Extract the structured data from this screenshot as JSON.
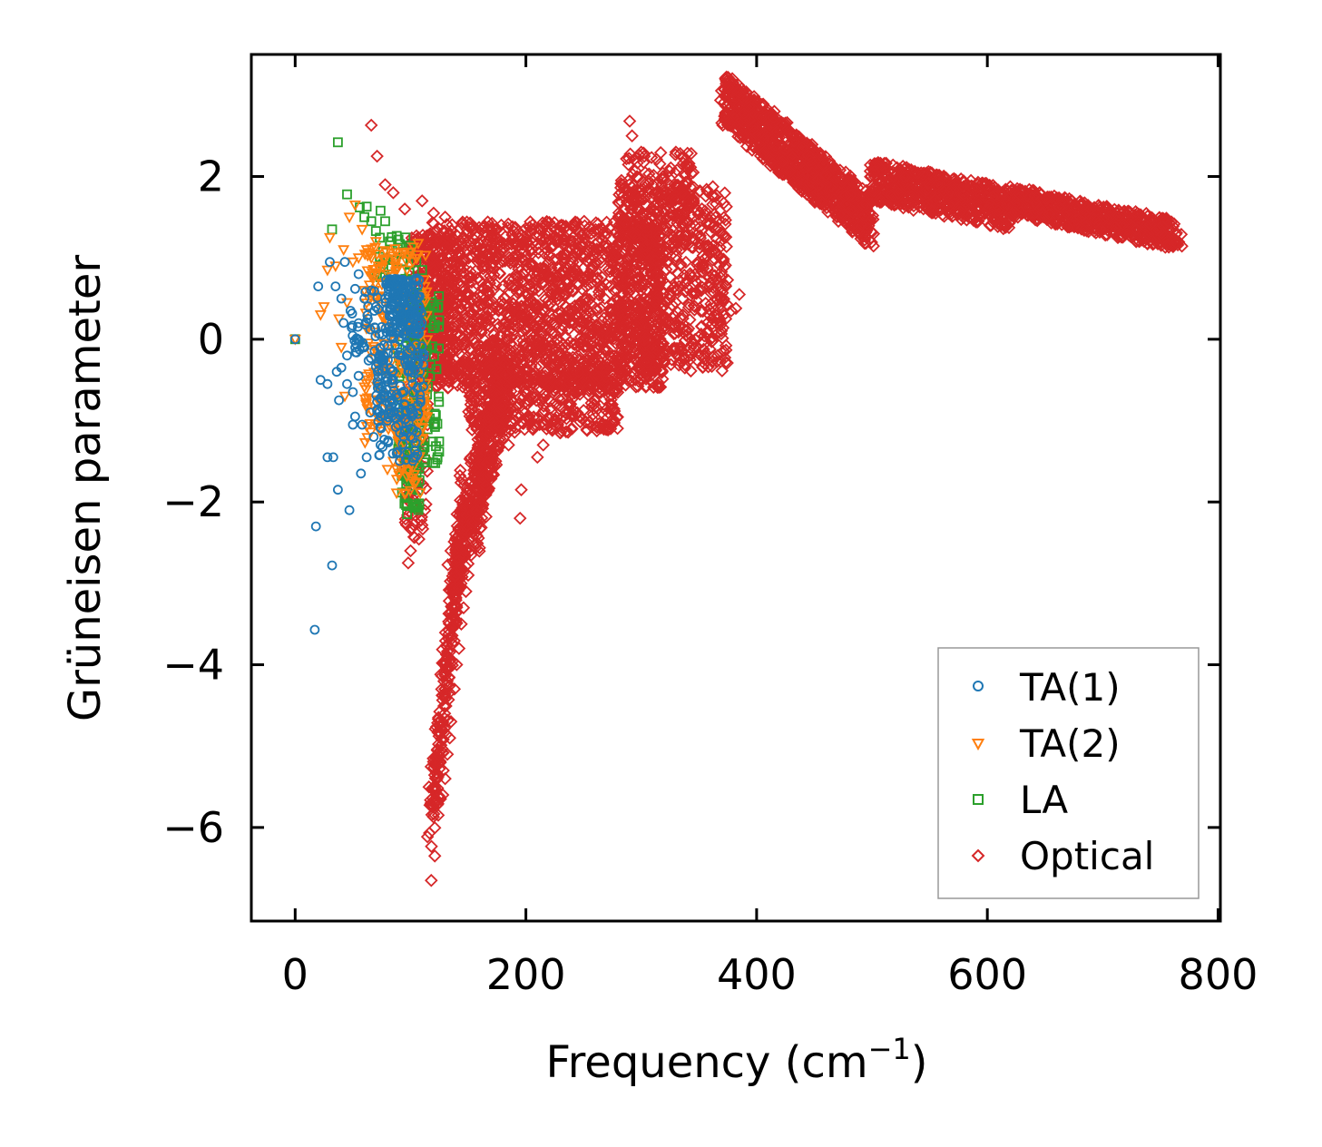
{
  "chart_data": {
    "type": "scatter",
    "xlabel": "Frequency (cm",
    "xlabel_sup": "−1",
    "xlabel_close": ")",
    "ylabel": "Grüneisen parameter",
    "xlim": [
      -38,
      802
    ],
    "ylim": [
      -7.15,
      3.5
    ],
    "xticks": [
      {
        "value": 0,
        "label": "0"
      },
      {
        "value": 200,
        "label": "200"
      },
      {
        "value": 400,
        "label": "400"
      },
      {
        "value": 600,
        "label": "600"
      },
      {
        "value": 800,
        "label": "800"
      }
    ],
    "yticks": [
      {
        "value": 2,
        "label": "2"
      },
      {
        "value": 0,
        "label": "0"
      },
      {
        "value": -2,
        "label": "−2"
      },
      {
        "value": -4,
        "label": "−4"
      },
      {
        "value": -6,
        "label": "−6"
      }
    ],
    "legend_position": "lower-right",
    "series": [
      {
        "name": "TA(1)",
        "marker": "circle",
        "color": "#1f77b4",
        "points": [
          [
            0,
            0
          ],
          [
            17,
            -3.57
          ],
          [
            18,
            -2.3
          ],
          [
            20,
            0.65
          ],
          [
            22,
            -0.5
          ],
          [
            28,
            -0.55
          ],
          [
            28,
            -1.45
          ],
          [
            30,
            0.95
          ],
          [
            32,
            -2.78
          ],
          [
            33,
            -1.45
          ],
          [
            35,
            0.65
          ],
          [
            36,
            -0.4
          ],
          [
            37,
            -1.85
          ],
          [
            38,
            -0.75
          ],
          [
            40,
            0.5
          ],
          [
            40,
            -0.35
          ],
          [
            42,
            0.2
          ],
          [
            43,
            0.95
          ],
          [
            45,
            -0.2
          ],
          [
            45,
            -0.55
          ],
          [
            47,
            -2.1
          ],
          [
            48,
            0.35
          ],
          [
            50,
            -1.05
          ],
          [
            50,
            -0.65
          ],
          [
            52,
            0.62
          ],
          [
            52,
            -0.95
          ],
          [
            55,
            0.8
          ],
          [
            55,
            -0.45
          ],
          [
            57,
            -1.65
          ],
          [
            58,
            -1.05
          ],
          [
            60,
            0.5
          ],
          [
            60,
            -0.1
          ],
          [
            62,
            -1.45
          ],
          [
            63,
            0.25
          ],
          [
            65,
            -0.9
          ],
          [
            66,
            0.6
          ],
          [
            68,
            -1.2
          ],
          [
            70,
            0.4
          ],
          [
            72,
            -0.3
          ],
          [
            74,
            -1.3
          ],
          [
            75,
            0.15
          ],
          [
            77,
            -0.7
          ],
          [
            78,
            0.5
          ],
          [
            80,
            -1.0
          ],
          [
            82,
            0.3
          ],
          [
            84,
            -0.4
          ],
          [
            86,
            0.55
          ],
          [
            88,
            -1.4
          ],
          [
            90,
            0.35
          ],
          [
            92,
            -0.2
          ],
          [
            94,
            0.6
          ],
          [
            95,
            -0.8
          ],
          [
            97,
            0.1
          ],
          [
            99,
            0.45
          ],
          [
            100,
            -1.2
          ],
          [
            102,
            -0.55
          ],
          [
            104,
            0.3
          ],
          [
            106,
            -0.6
          ]
        ],
        "clusters": [
          {
            "fx": [
              78,
              110
            ],
            "g": [
              0.05,
              0.75
            ],
            "n": 160
          },
          {
            "fx": [
              70,
              112
            ],
            "g": [
              -1.0,
              0.1
            ],
            "n": 120
          },
          {
            "fx": [
              72,
              108
            ],
            "g": [
              -1.5,
              -0.9
            ],
            "n": 40
          },
          {
            "fx": [
              48,
              78
            ],
            "g": [
              -0.3,
              0.6
            ],
            "n": 40
          }
        ]
      },
      {
        "name": "TA(2)",
        "marker": "triangle-down",
        "color": "#ff7f0e",
        "points": [
          [
            0,
            0
          ],
          [
            22,
            0.3
          ],
          [
            25,
            0.4
          ],
          [
            28,
            0.85
          ],
          [
            30,
            1.25
          ],
          [
            35,
            0.9
          ],
          [
            38,
            0.25
          ],
          [
            40,
            -0.1
          ],
          [
            42,
            1.1
          ],
          [
            43,
            -0.7
          ],
          [
            45,
            0.45
          ],
          [
            47,
            1.5
          ],
          [
            50,
            0.95
          ],
          [
            52,
            1.65
          ],
          [
            55,
            1.0
          ],
          [
            58,
            1.35
          ],
          [
            60,
            0.6
          ],
          [
            62,
            1.1
          ],
          [
            63,
            -0.5
          ],
          [
            66,
            1.0
          ],
          [
            70,
            1.2
          ],
          [
            72,
            0.9
          ],
          [
            75,
            -1.0
          ],
          [
            78,
            -0.4
          ],
          [
            80,
            -1.6
          ],
          [
            85,
            -1.5
          ],
          [
            88,
            -1.6
          ],
          [
            90,
            -1.25
          ],
          [
            95,
            -1.9
          ],
          [
            100,
            -1.55
          ],
          [
            105,
            -1.45
          ],
          [
            108,
            -0.8
          ],
          [
            110,
            -0.3
          ],
          [
            112,
            0.5
          ]
        ],
        "clusters": [
          {
            "fx": [
              60,
              115
            ],
            "g": [
              -1.3,
              1.2
            ],
            "n": 220
          },
          {
            "fx": [
              85,
              110
            ],
            "g": [
              -1.9,
              -1.0
            ],
            "n": 30
          }
        ]
      },
      {
        "name": "LA",
        "marker": "square",
        "color": "#2ca02c",
        "points": [
          [
            0,
            0
          ],
          [
            37,
            2.42
          ],
          [
            32,
            1.35
          ],
          [
            45,
            1.78
          ],
          [
            56,
            1.62
          ],
          [
            60,
            1.5
          ],
          [
            62,
            1.63
          ],
          [
            66,
            1.45
          ],
          [
            70,
            1.33
          ],
          [
            74,
            1.58
          ],
          [
            78,
            1.45
          ],
          [
            82,
            1.2
          ],
          [
            85,
            0.98
          ],
          [
            90,
            0.55
          ],
          [
            95,
            -1.95
          ],
          [
            97,
            -2.15
          ],
          [
            100,
            -1.8
          ],
          [
            103,
            -1.55
          ],
          [
            105,
            -1.75
          ],
          [
            108,
            -1.2
          ],
          [
            112,
            -0.6
          ],
          [
            116,
            0.3
          ],
          [
            120,
            0.42
          ],
          [
            124,
            0.4
          ],
          [
            110,
            0.85
          ],
          [
            105,
            0.95
          ]
        ],
        "clusters": [
          {
            "fx": [
              88,
              125
            ],
            "g": [
              -1.6,
              0.6
            ],
            "n": 140
          },
          {
            "fx": [
              92,
              108
            ],
            "g": [
              -2.1,
              -1.4
            ],
            "n": 40
          },
          {
            "fx": [
              70,
              100
            ],
            "g": [
              0.7,
              1.3
            ],
            "n": 30
          }
        ]
      },
      {
        "name": "Optical",
        "marker": "diamond",
        "color": "#d62728",
        "points": [
          [
            66,
            2.63
          ],
          [
            71,
            2.25
          ],
          [
            78,
            1.9
          ],
          [
            85,
            1.8
          ],
          [
            95,
            1.6
          ],
          [
            110,
            1.7
          ],
          [
            120,
            1.55
          ],
          [
            130,
            1.5
          ],
          [
            98,
            -2.75
          ],
          [
            100,
            -2.6
          ],
          [
            118,
            -6.65
          ],
          [
            121,
            -6.35
          ],
          [
            124,
            -5.85
          ],
          [
            126,
            -5.65
          ],
          [
            128,
            -5.6
          ],
          [
            130,
            -5.4
          ],
          [
            132,
            -5.1
          ],
          [
            134,
            -4.9
          ],
          [
            135,
            -4.7
          ],
          [
            138,
            -4.3
          ],
          [
            140,
            -4.0
          ],
          [
            142,
            -3.8
          ],
          [
            144,
            -3.5
          ],
          [
            146,
            -3.3
          ],
          [
            148,
            -3.1
          ],
          [
            150,
            -2.9
          ],
          [
            152,
            -2.6
          ],
          [
            155,
            -2.4
          ],
          [
            158,
            -2.2
          ],
          [
            160,
            -2.0
          ],
          [
            165,
            -1.8
          ],
          [
            170,
            -1.6
          ],
          [
            195,
            -2.2
          ],
          [
            196,
            -1.85
          ],
          [
            185,
            -1.3
          ],
          [
            200,
            -1.0
          ],
          [
            210,
            -1.45
          ],
          [
            215,
            -1.3
          ],
          [
            230,
            -1.15
          ],
          [
            240,
            -1.1
          ],
          [
            290,
            2.68
          ],
          [
            292,
            2.5
          ],
          [
            300,
            2.3
          ],
          [
            330,
            2.3
          ],
          [
            340,
            2.15
          ],
          [
            345,
            2.05
          ],
          [
            370,
            0.6
          ],
          [
            375,
            0.42
          ],
          [
            378,
            0.35
          ],
          [
            382,
            0.38
          ],
          [
            385,
            0.55
          ]
        ],
        "clusters": [
          {
            "fx": [
              110,
              320
            ],
            "g": [
              -0.6,
              1.45
            ],
            "n": 1700
          },
          {
            "fx": [
              150,
              280
            ],
            "g": [
              -1.15,
              -0.2
            ],
            "n": 450
          },
          {
            "fx": [
              280,
              375
            ],
            "g": [
              -0.4,
              1.9
            ],
            "n": 650
          },
          {
            "fx": [
              280,
              345
            ],
            "g": [
              1.2,
              2.3
            ],
            "n": 150
          },
          {
            "fx": [
              100,
              140
            ],
            "g": [
              -0.5,
              1.3
            ],
            "n": 250
          },
          {
            "fx": [
              95,
              115
            ],
            "g": [
              -2.5,
              -0.2
            ],
            "n": 90
          }
        ],
        "bands": [
          {
            "f": [
              118,
              148
            ],
            "g": [
              -5.9,
              -1.8
            ],
            "w": 0.35,
            "n": 260
          },
          {
            "f": [
              135,
              175
            ],
            "g": [
              -3.2,
              -0.4
            ],
            "w": 0.35,
            "n": 260
          },
          {
            "f": [
              155,
              185
            ],
            "g": [
              -2.4,
              -0.4
            ],
            "w": 0.3,
            "n": 200
          },
          {
            "f": [
              372,
              500
            ],
            "g": [
              2.95,
              1.45
            ],
            "w": 0.32,
            "n": 1000
          },
          {
            "f": [
              500,
              620
            ],
            "g": [
              1.95,
              1.6
            ],
            "w": 0.25,
            "n": 650
          },
          {
            "f": [
              620,
              765
            ],
            "g": [
              1.7,
              1.28
            ],
            "w": 0.18,
            "n": 650
          }
        ]
      }
    ]
  }
}
